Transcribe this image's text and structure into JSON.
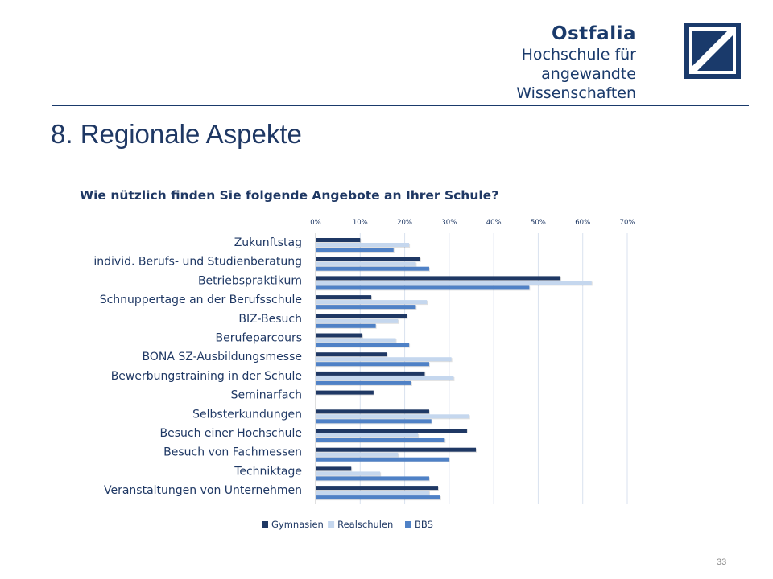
{
  "header": {
    "logo_name": "Ostfalia",
    "logo_line1": "Hochschule für angewandte",
    "logo_line2": "Wissenschaften",
    "brand_color": "#1a3a6b"
  },
  "slide": {
    "title": "8. Regionale Aspekte",
    "page_number": "33"
  },
  "chart_data": {
    "type": "bar",
    "orientation": "horizontal",
    "title": "Wie nützlich finden Sie folgende Angebote an Ihrer Schule?",
    "categories": [
      "Zukunftstag",
      "individ. Berufs- und Studienberatung",
      "Betriebspraktikum",
      "Schnuppertage an der Berufsschule",
      "BIZ-Besuch",
      "Berufeparcours",
      "BONA SZ-Ausbildungsmesse",
      "Bewerbungstraining in der Schule",
      "Seminarfach",
      "Selbsterkundungen",
      "Besuch einer Hochschule",
      "Besuch von Fachmessen",
      "Techniktage",
      "Veranstaltungen von Unternehmen"
    ],
    "series": [
      {
        "name": "Gymnasien",
        "color": "#1f3864",
        "values": [
          10,
          23.5,
          55,
          12.5,
          20.5,
          10.5,
          16,
          24.5,
          13,
          25.5,
          34,
          36,
          8,
          27.5
        ]
      },
      {
        "name": "Realschulen",
        "color": "#c5d7ee",
        "values": [
          21,
          22.5,
          62,
          25,
          18.5,
          18,
          30.5,
          31,
          0,
          34.5,
          23,
          18.5,
          14.5,
          25.5
        ]
      },
      {
        "name": "BBS",
        "color": "#4f81c6",
        "values": [
          17.5,
          25.5,
          48,
          22.5,
          13.5,
          21,
          25.5,
          21.5,
          0,
          26,
          29,
          30,
          25.5,
          28
        ]
      }
    ],
    "xaxis": {
      "range": [
        0,
        70
      ],
      "ticks": [
        "0%",
        "10%",
        "20%",
        "30%",
        "40%",
        "50%",
        "60%",
        "70%"
      ],
      "position": "top"
    },
    "grid": true,
    "legend": "bottom"
  }
}
